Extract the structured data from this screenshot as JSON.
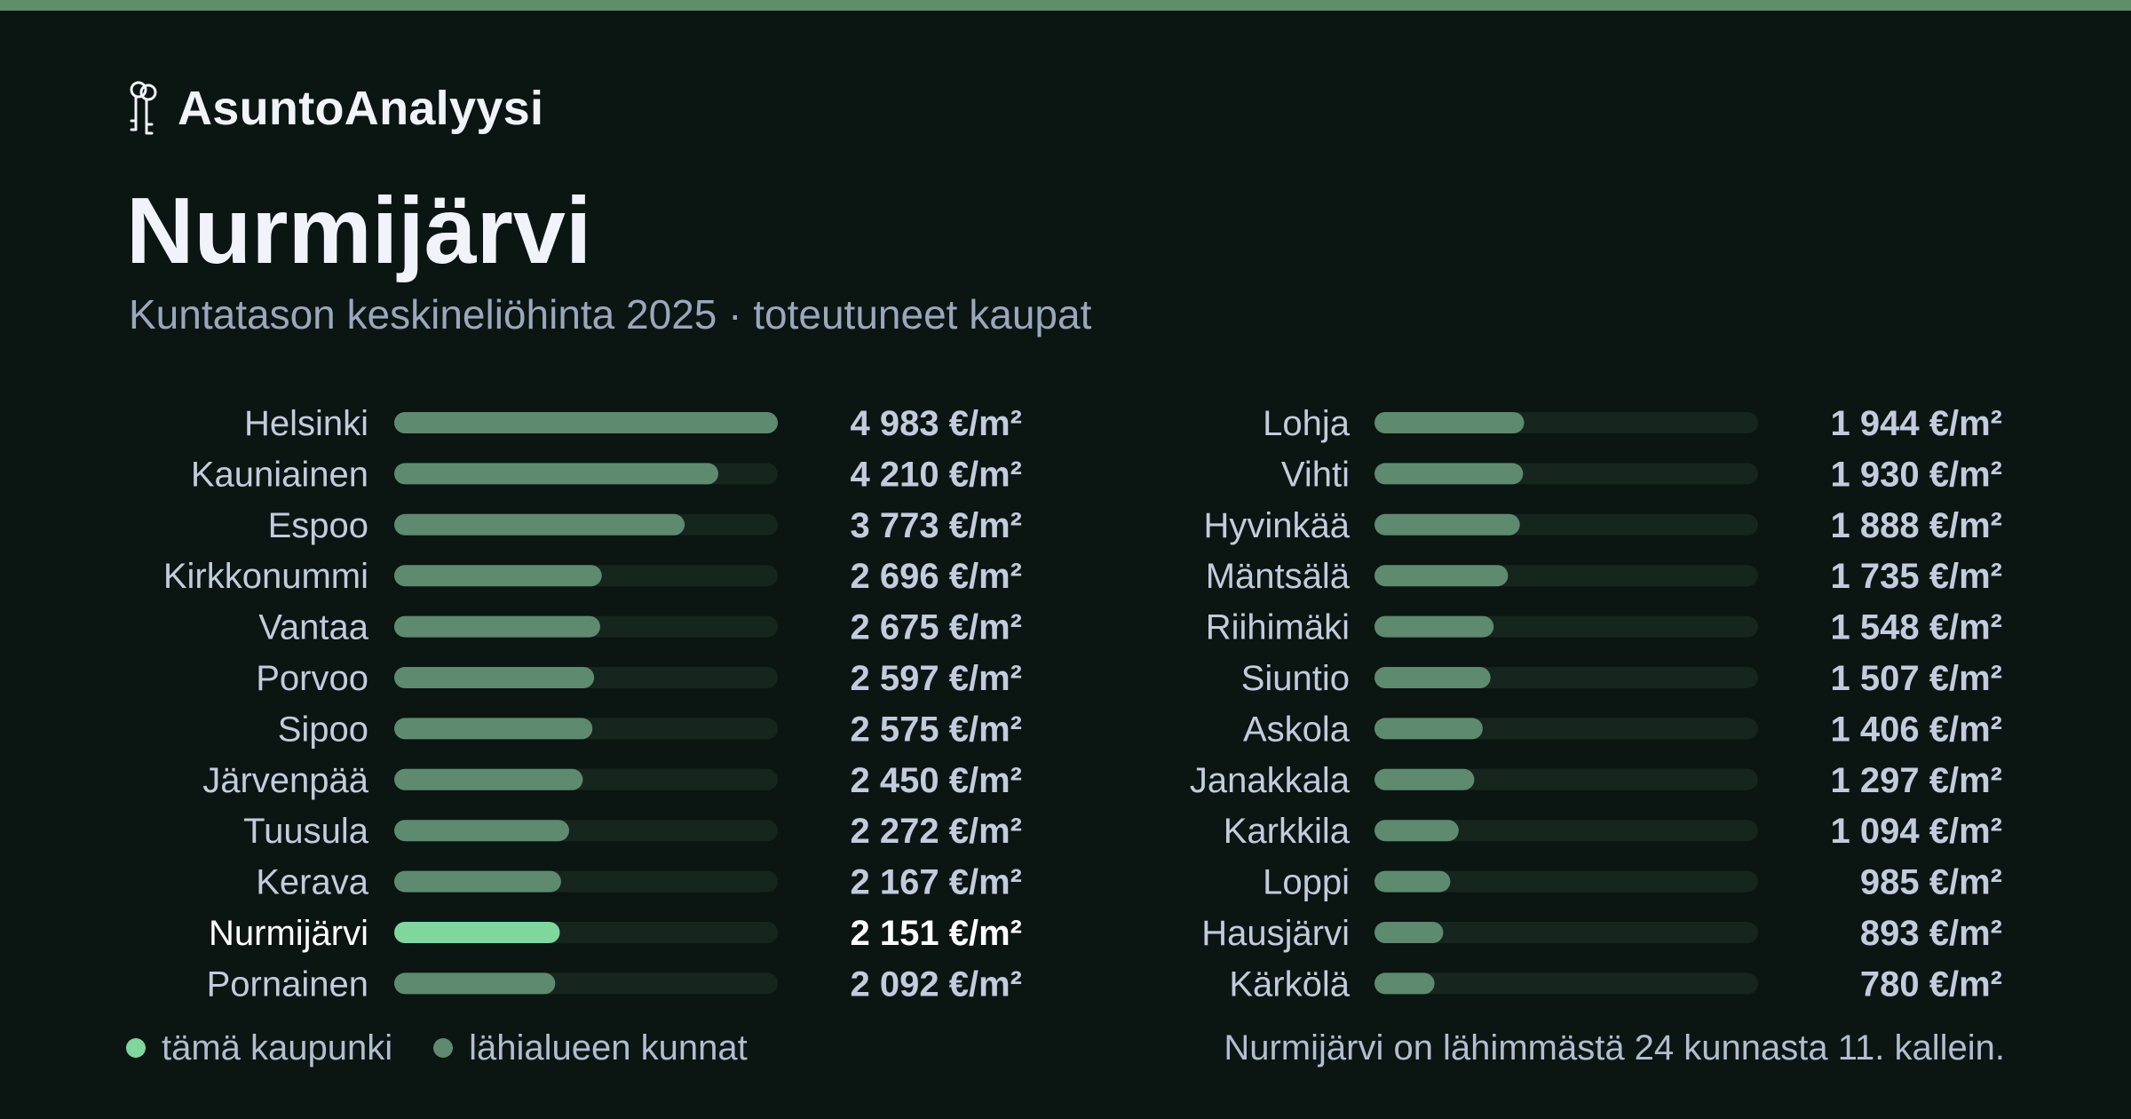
{
  "brand": {
    "name": "AsuntoAnalyysi",
    "icon": "keys-icon"
  },
  "header": {
    "title": "Nurmijärvi",
    "subtitle": "Kuntatason keskineliöhinta 2025 · toteutuneet kaupat"
  },
  "colors": {
    "background": "#0b1512",
    "accent_bar": "#5e8f6a",
    "bar": "#5e8a70",
    "bar_highlight": "#7fd79e",
    "track": "#17251f",
    "text": "#c3cbde",
    "highlight_text": "#ffffff"
  },
  "chart_data": {
    "type": "bar",
    "orientation": "horizontal",
    "unit": "€/m²",
    "highlight": "Nurmijärvi",
    "xlim": [
      0,
      4983
    ],
    "categories": [
      "Helsinki",
      "Kauniainen",
      "Espoo",
      "Kirkkonummi",
      "Vantaa",
      "Porvoo",
      "Sipoo",
      "Järvenpää",
      "Tuusula",
      "Kerava",
      "Nurmijärvi",
      "Pornainen",
      "Lohja",
      "Vihti",
      "Hyvinkää",
      "Mäntsälä",
      "Riihimäki",
      "Siuntio",
      "Askola",
      "Janakkala",
      "Karkkila",
      "Loppi",
      "Hausjärvi",
      "Kärkölä"
    ],
    "values": [
      4983,
      4210,
      3773,
      2696,
      2675,
      2597,
      2575,
      2450,
      2272,
      2167,
      2151,
      2092,
      1944,
      1930,
      1888,
      1735,
      1548,
      1507,
      1406,
      1297,
      1094,
      985,
      893,
      780
    ],
    "value_labels": [
      "4 983 €/m²",
      "4 210 €/m²",
      "3 773 €/m²",
      "2 696 €/m²",
      "2 675 €/m²",
      "2 597 €/m²",
      "2 575 €/m²",
      "2 450 €/m²",
      "2 272 €/m²",
      "2 167 €/m²",
      "2 151 €/m²",
      "2 092 €/m²",
      "1 944 €/m²",
      "1 930 €/m²",
      "1 888 €/m²",
      "1 735 €/m²",
      "1 548 €/m²",
      "1 507 €/m²",
      "1 406 €/m²",
      "1 297 €/m²",
      "1 094 €/m²",
      "985 €/m²",
      "893 €/m²",
      "780 €/m²"
    ],
    "columns": 2,
    "rows_per_column": 12,
    "grid": false
  },
  "legend": [
    {
      "label": "tämä kaupunki",
      "color": "#7fd79e"
    },
    {
      "label": "lähialueen kunnat",
      "color": "#5e8a70"
    }
  ],
  "footnote": "Nurmijärvi on lähimmästä 24 kunnasta 11. kallein."
}
